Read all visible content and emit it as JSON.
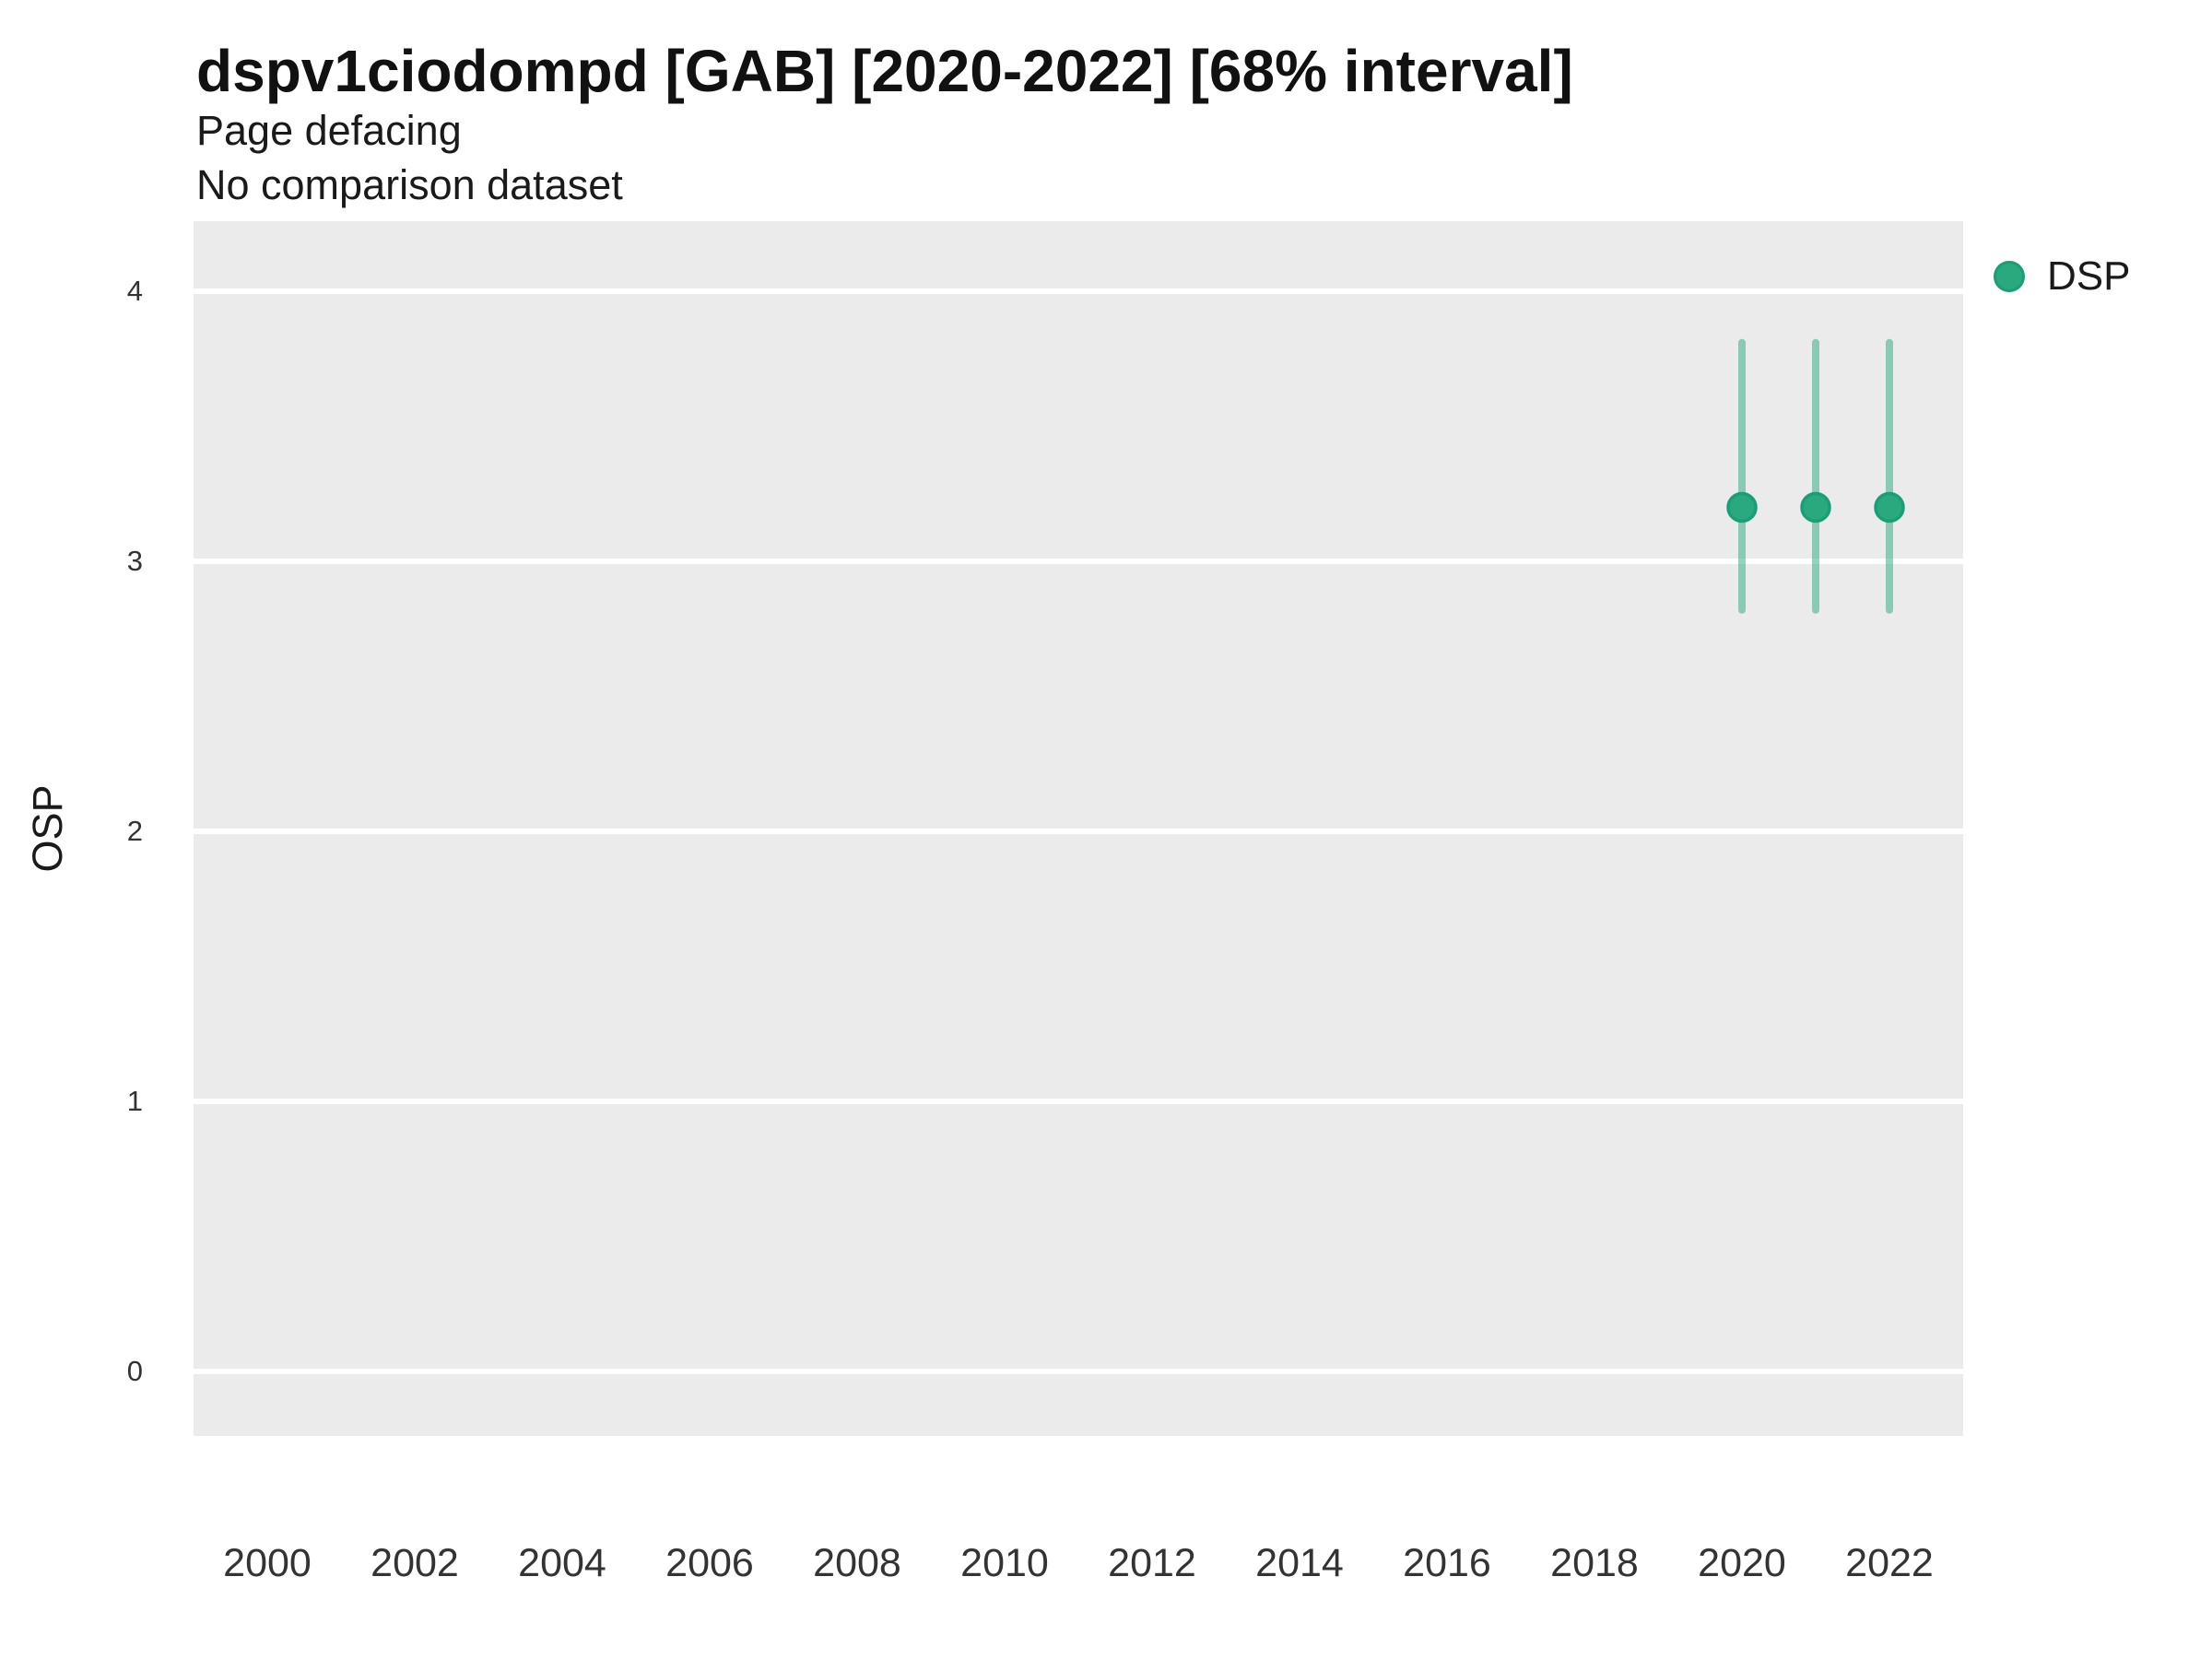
{
  "header": {
    "title": "dspv1ciodompd [GAB] [2020-2022] [68% interval]",
    "subtitle": "Page defacing",
    "note": "No comparison dataset"
  },
  "y_axis": {
    "title": "OSP"
  },
  "legend": {
    "label": "DSP",
    "swatch_color": "#2aa87e",
    "swatch_border_color": "#1b9e77"
  },
  "chart_data": {
    "type": "pointrange",
    "title": "dspv1ciodompd [GAB] [2020-2022] [68% interval]",
    "subtitle": "Page defacing",
    "note": "No comparison dataset",
    "xlabel": "",
    "ylabel": "OSP",
    "legend_position": "right",
    "grid": "horizontal-major-only",
    "panel_background": "#ebebeb",
    "gridline_color": "#ffffff",
    "xlim": [
      1999,
      2023
    ],
    "ylim": [
      -0.24,
      4.26
    ],
    "x_ticks": [
      2000,
      2002,
      2004,
      2006,
      2008,
      2010,
      2012,
      2014,
      2016,
      2018,
      2020,
      2022
    ],
    "y_ticks": [
      0,
      1,
      2,
      3,
      4
    ],
    "series": [
      {
        "name": "DSP",
        "point_fill": "#2aa87e",
        "point_stroke": "#1b9e77",
        "range_color": "rgba(42,168,126,0.5)",
        "points": [
          {
            "x": 2020,
            "y": 3.2,
            "y_low": 2.82,
            "y_high": 3.81
          },
          {
            "x": 2021,
            "y": 3.2,
            "y_low": 2.82,
            "y_high": 3.81
          },
          {
            "x": 2022,
            "y": 3.2,
            "y_low": 2.82,
            "y_high": 3.81
          }
        ]
      }
    ]
  }
}
